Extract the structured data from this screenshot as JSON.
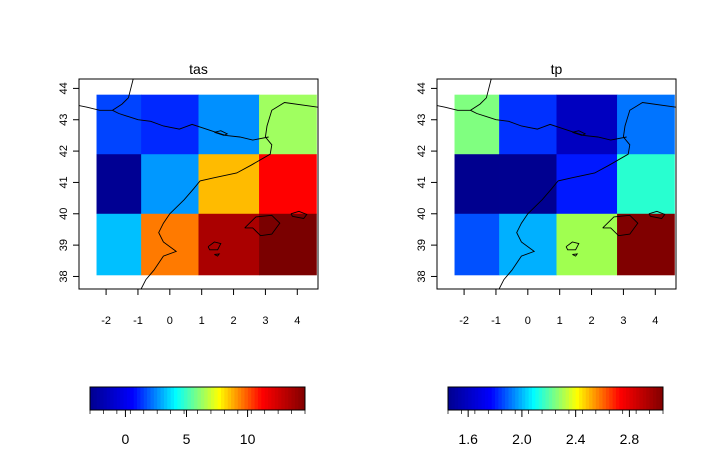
{
  "chart_data": [
    {
      "type": "heatmap",
      "title": "tas",
      "xlabel": "",
      "ylabel": "",
      "xlim": [
        -2.85,
        4.65
      ],
      "ylim": [
        37.6,
        44.3
      ],
      "x_ticks": [
        -2,
        -1,
        0,
        1,
        2,
        3,
        4
      ],
      "y_ticks": [
        38,
        39,
        40,
        41,
        42,
        43,
        44
      ],
      "x_edges": [
        -2.3,
        -0.9,
        0.9,
        2.8,
        4.6
      ],
      "y_edges": [
        38.05,
        40.0,
        41.9,
        43.8
      ],
      "rows": [
        {
          "lat_range": [
            41.9,
            43.8
          ],
          "colors": [
            "#0044ff",
            "#0028ff",
            "#0090ff",
            "#a0ff60"
          ]
        },
        {
          "lat_range": [
            40.0,
            41.9
          ],
          "colors": [
            "#000093",
            "#0098ff",
            "#ffbb00",
            "#ff0000"
          ]
        },
        {
          "lat_range": [
            38.05,
            40.0
          ],
          "colors": [
            "#00c0ff",
            "#ff7a00",
            "#aa0000",
            "#7a0000"
          ]
        }
      ],
      "colorbar": {
        "min": -2.9,
        "max": 14.7,
        "ticks": [
          0,
          5,
          10
        ],
        "tick_labels": [
          "0",
          "5",
          "10"
        ],
        "palette": [
          "#00008f",
          "#0000ff",
          "#00ffff",
          "#ffff00",
          "#ff0000",
          "#800000"
        ]
      }
    },
    {
      "type": "heatmap",
      "title": "tp",
      "xlabel": "",
      "ylabel": "",
      "xlim": [
        -2.85,
        4.65
      ],
      "ylim": [
        37.6,
        44.3
      ],
      "x_ticks": [
        -2,
        -1,
        0,
        1,
        2,
        3,
        4
      ],
      "y_ticks": [
        38,
        39,
        40,
        41,
        42,
        43,
        44
      ],
      "x_edges": [
        -2.3,
        -0.9,
        0.9,
        2.8,
        4.6
      ],
      "y_edges": [
        38.05,
        40.0,
        41.9,
        43.8
      ],
      "rows": [
        {
          "lat_range": [
            41.9,
            43.8
          ],
          "colors": [
            "#80ff80",
            "#0030ff",
            "#0000c0",
            "#0074ff"
          ]
        },
        {
          "lat_range": [
            40.0,
            41.9
          ],
          "colors": [
            "#00008f",
            "#000090",
            "#0018ff",
            "#28ffd0"
          ]
        },
        {
          "lat_range": [
            38.05,
            40.0
          ],
          "colors": [
            "#0050ff",
            "#00b0ff",
            "#a0ff50",
            "#800000"
          ]
        }
      ],
      "colorbar": {
        "min": 1.45,
        "max": 3.05,
        "ticks": [
          1.6,
          2.0,
          2.4,
          2.8
        ],
        "tick_labels": [
          "1.6",
          "2.0",
          "2.4",
          "2.8"
        ],
        "palette": [
          "#00008f",
          "#0000ff",
          "#00ffff",
          "#ffff00",
          "#ff0000",
          "#800000"
        ]
      }
    }
  ]
}
